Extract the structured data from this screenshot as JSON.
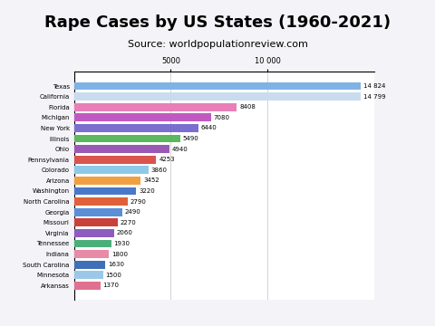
{
  "chart_data": {
    "type": "bar",
    "orientation": "horizontal",
    "title": "Rape Cases by US States (1960-2021)",
    "subtitle": "Source: worldpopulationreview.com",
    "categories": [
      "Texas",
      "California",
      "Florida",
      "Michigan",
      "New York",
      "Illinois",
      "Ohio",
      "Pennsylvania",
      "Colorado",
      "Arizona",
      "Washington",
      "North Carolina",
      "Georgia",
      "Missouri",
      "Virginia",
      "Tennessee",
      "Indiana",
      "South Carolina",
      "Minnesota",
      "Arkansas"
    ],
    "values": [
      14824,
      14799,
      8408,
      7080,
      6440,
      5490,
      4940,
      4253,
      3860,
      3452,
      3220,
      2790,
      2490,
      2270,
      2060,
      1930,
      1800,
      1630,
      1500,
      1370
    ],
    "value_labels": [
      "14 824",
      "14 799",
      "8408",
      "7080",
      "6440",
      "5490",
      "4940",
      "4253",
      "3860",
      "3452",
      "3220",
      "2790",
      "2490",
      "2270",
      "2060",
      "1930",
      "1800",
      "1630",
      "1500",
      "1370"
    ],
    "data_labels": true,
    "colors": [
      "#7fb2e5",
      "#c9dcef",
      "#e87fb8",
      "#c05ac0",
      "#7a6fd0",
      "#5cb85c",
      "#9b59b6",
      "#d9534f",
      "#8ec9e8",
      "#f0a040",
      "#4a78c8",
      "#e0603a",
      "#5a8fd8",
      "#c8423a",
      "#8e5cc0",
      "#4caf7a",
      "#e88aa8",
      "#3f6fb8",
      "#9cc8e8",
      "#e07090"
    ],
    "xlim": [
      0,
      15500
    ],
    "xticks": [
      5000,
      {
        "value": 10000,
        "label": "10 000"
      }
    ],
    "grid": true
  }
}
